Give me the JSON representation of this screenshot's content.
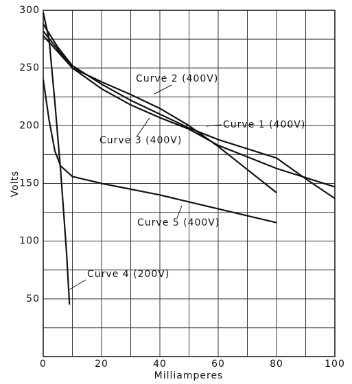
{
  "chart_data": {
    "type": "line",
    "xlabel": "Milliamperes",
    "ylabel": "Volts",
    "xlim": [
      0,
      100
    ],
    "ylim": [
      0,
      300
    ],
    "xticks": [
      0,
      20,
      40,
      60,
      80,
      100
    ],
    "yticks": [
      50,
      100,
      150,
      200,
      250,
      300
    ],
    "xminor_ticks": [
      10,
      30,
      50,
      70,
      90
    ],
    "yminor_ticks": [
      25,
      75,
      125,
      175,
      225,
      275
    ],
    "grid": true,
    "series": [
      {
        "name": "Curve 1 (400V)",
        "color": "#111111",
        "x": [
          0,
          5,
          10,
          20,
          30,
          40,
          50,
          60,
          70,
          80,
          85,
          90,
          100
        ],
        "values": [
          288,
          268,
          252,
          236,
          222,
          210,
          198,
          188,
          180,
          172,
          163,
          154,
          137
        ]
      },
      {
        "name": "Curve 2 (400V)",
        "color": "#111111",
        "x": [
          0,
          10,
          20,
          30,
          40,
          50,
          60,
          70,
          80
        ],
        "values": [
          282,
          250,
          238,
          227,
          215,
          200,
          182,
          162,
          142
        ]
      },
      {
        "name": "Curve 3 (400V)",
        "color": "#111111",
        "x": [
          0,
          10,
          20,
          30,
          40,
          50,
          60,
          70,
          80,
          90,
          100
        ],
        "values": [
          278,
          250,
          232,
          218,
          207,
          197,
          183,
          173,
          163,
          155,
          147
        ]
      },
      {
        "name": "Curve 4 (200V)",
        "color": "#111111",
        "x": [
          0,
          2,
          4,
          6,
          8,
          9
        ],
        "values": [
          298,
          275,
          220,
          160,
          90,
          45
        ]
      },
      {
        "name": "Curve 5 (400V)",
        "color": "#111111",
        "x": [
          0,
          2,
          4,
          6,
          10,
          20,
          40,
          60,
          80
        ],
        "values": [
          240,
          205,
          178,
          165,
          156,
          150,
          140,
          128,
          116
        ]
      }
    ]
  }
}
